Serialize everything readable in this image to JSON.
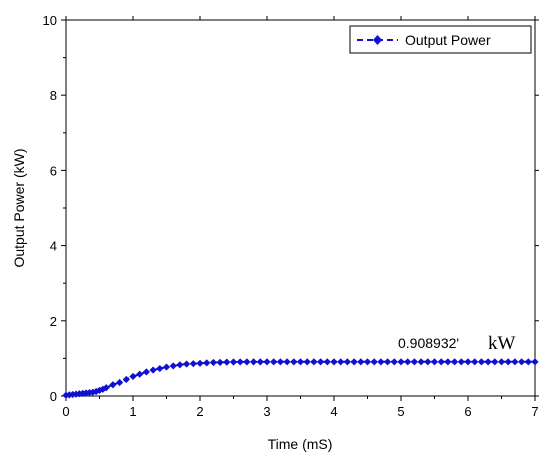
{
  "chart_data": {
    "type": "line",
    "title": "",
    "xlabel": "Time (mS)",
    "ylabel": "Output Power (kW)",
    "xlim": [
      0,
      7
    ],
    "ylim": [
      0,
      10
    ],
    "xticks": [
      0,
      1,
      2,
      3,
      4,
      5,
      6,
      7
    ],
    "yticks": [
      0,
      2,
      4,
      6,
      8,
      10
    ],
    "grid": false,
    "legend_position": "top-right",
    "series": [
      {
        "name": "Output Power",
        "color": "#1010d0",
        "line_style": "dashed",
        "marker": "diamond",
        "x": [
          0.0,
          0.05,
          0.1,
          0.15,
          0.2,
          0.25,
          0.3,
          0.35,
          0.4,
          0.45,
          0.5,
          0.55,
          0.6,
          0.7,
          0.8,
          0.9,
          1.0,
          1.1,
          1.2,
          1.3,
          1.4,
          1.5,
          1.6,
          1.7,
          1.8,
          1.9,
          2.0,
          2.1,
          2.2,
          2.3,
          2.4,
          2.5,
          2.6,
          2.7,
          2.8,
          2.9,
          3.0,
          3.1,
          3.2,
          3.3,
          3.4,
          3.5,
          3.6,
          3.7,
          3.8,
          3.9,
          4.0,
          4.1,
          4.2,
          4.3,
          4.4,
          4.5,
          4.6,
          4.7,
          4.8,
          4.9,
          5.0,
          5.1,
          5.2,
          5.3,
          5.4,
          5.5,
          5.6,
          5.7,
          5.8,
          5.9,
          6.0,
          6.1,
          6.2,
          6.3,
          6.4,
          6.5,
          6.6,
          6.7,
          6.8,
          6.9,
          7.0
        ],
        "y": [
          0.02,
          0.03,
          0.04,
          0.05,
          0.06,
          0.07,
          0.08,
          0.09,
          0.1,
          0.12,
          0.15,
          0.18,
          0.22,
          0.3,
          0.36,
          0.44,
          0.52,
          0.58,
          0.64,
          0.69,
          0.73,
          0.77,
          0.8,
          0.83,
          0.85,
          0.86,
          0.87,
          0.88,
          0.89,
          0.895,
          0.9,
          0.905,
          0.906,
          0.907,
          0.908,
          0.908,
          0.909,
          0.909,
          0.909,
          0.909,
          0.909,
          0.909,
          0.909,
          0.909,
          0.909,
          0.909,
          0.909,
          0.909,
          0.909,
          0.909,
          0.909,
          0.909,
          0.909,
          0.909,
          0.909,
          0.909,
          0.909,
          0.909,
          0.909,
          0.909,
          0.909,
          0.909,
          0.909,
          0.909,
          0.909,
          0.909,
          0.909,
          0.909,
          0.909,
          0.909,
          0.909,
          0.909,
          0.909,
          0.909,
          0.909,
          0.909,
          0.909
        ]
      }
    ],
    "annotation": {
      "value_text": "0.908932'",
      "unit_text": "kW"
    }
  }
}
